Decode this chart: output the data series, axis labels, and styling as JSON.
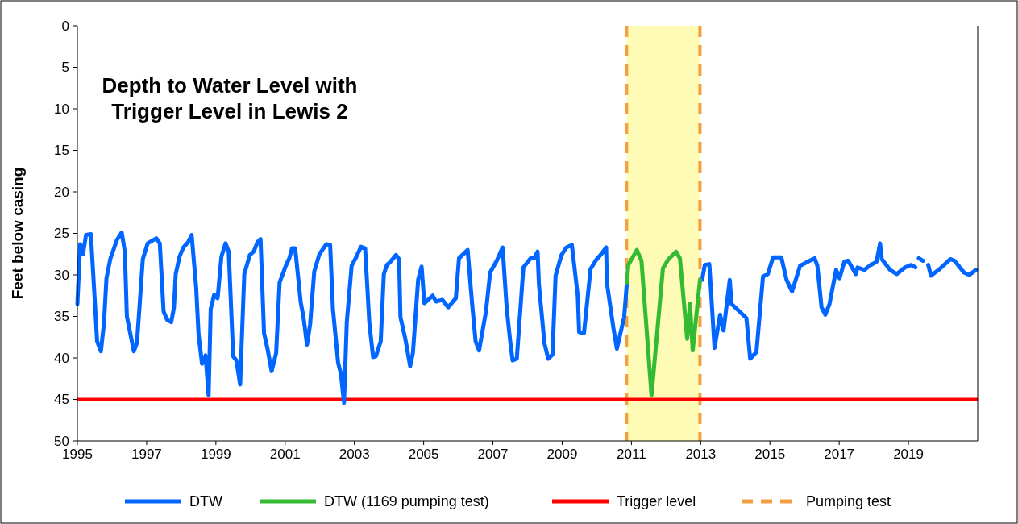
{
  "chart_data": {
    "type": "line",
    "title": "Depth to Water Level with Trigger Level in Lewis 2",
    "ylabel": "Feet below casing",
    "xlim": [
      1995,
      2021
    ],
    "xticks": [
      1995,
      1997,
      1999,
      2001,
      2003,
      2005,
      2007,
      2009,
      2011,
      2013,
      2015,
      2017,
      2019
    ],
    "ylim": [
      50,
      0
    ],
    "yticks": [
      0,
      5,
      10,
      15,
      20,
      25,
      30,
      35,
      40,
      45,
      50
    ],
    "grid": false,
    "legend": "bottom",
    "marker": "none",
    "line_style": "solid",
    "series": [
      {
        "name": "DTW",
        "color": "#0066ff",
        "x": [
          1995.0,
          1995.08,
          1995.16,
          1995.25,
          1995.39,
          1995.48,
          1995.57,
          1995.68,
          1995.77,
          1995.84,
          1995.95,
          1996.14,
          1996.28,
          1996.37,
          1996.43,
          1996.63,
          1996.72,
          1996.8,
          1996.89,
          1997.03,
          1997.28,
          1997.38,
          1997.49,
          1997.59,
          1997.71,
          1997.79,
          1997.84,
          1997.95,
          1998.06,
          1998.19,
          1998.3,
          1998.43,
          1998.5,
          1998.6,
          1998.7,
          1998.79,
          1998.85,
          1998.95,
          1999.05,
          1999.16,
          1999.28,
          1999.37,
          1999.5,
          1999.59,
          1999.7,
          1999.82,
          1999.98,
          2000.09,
          2000.21,
          2000.29,
          2000.39,
          2000.5,
          2000.61,
          2000.74,
          2000.84,
          2001.02,
          2001.12,
          2001.2,
          2001.29,
          2001.45,
          2001.53,
          2001.63,
          2001.72,
          2001.84,
          2001.99,
          2002.19,
          2002.3,
          2002.38,
          2002.53,
          2002.61,
          2002.7,
          2002.78,
          2002.92,
          2003.06,
          2003.19,
          2003.31,
          2003.43,
          2003.54,
          2003.62,
          2003.76,
          2003.85,
          2003.94,
          2004.02,
          2004.2,
          2004.29,
          2004.33,
          2004.47,
          2004.61,
          2004.69,
          2004.84,
          2004.94,
          2005.02,
          2005.13,
          2005.26,
          2005.36,
          2005.54,
          2005.71,
          2005.93,
          2006.02,
          2006.27,
          2006.4,
          2006.5,
          2006.6,
          2006.8,
          2006.92,
          2007.11,
          2007.28,
          2007.4,
          2007.5,
          2007.57,
          2007.69,
          2007.88,
          2008.09,
          2008.19,
          2008.29,
          2008.33,
          2008.49,
          2008.6,
          2008.72,
          2008.81,
          2008.98,
          2009.12,
          2009.28,
          2009.45,
          2009.49,
          2009.63,
          2009.82,
          2009.98,
          2010.13,
          2010.27,
          2010.29,
          2010.48,
          2010.58,
          2010.79,
          2010.87,
          2010.95,
          2013.0,
          2013.04,
          2013.12,
          2013.25,
          2013.4,
          2013.56,
          2013.66,
          2013.84,
          2013.89,
          2014.32,
          2014.43,
          2014.61,
          2014.8,
          2014.94,
          2015.09,
          2015.33,
          2015.48,
          2015.64,
          2015.87,
          2016.1,
          2016.29,
          2016.37,
          2016.49,
          2016.6,
          2016.72,
          2016.91,
          2017.01,
          2017.15,
          2017.26,
          2017.48,
          2017.53,
          2017.73,
          2017.88,
          2018.08,
          2018.18,
          2018.23,
          2018.47,
          2018.66,
          2018.9,
          2019.08,
          2019.2,
          2019.26,
          2019.3,
          2019.42,
          2019.48,
          2019.57,
          2019.65,
          2019.9,
          2020.21,
          2020.33,
          2020.6,
          2020.76,
          2020.95
        ],
        "values": [
          33.5,
          26.3,
          27.5,
          25.2,
          25.1,
          31.5,
          38,
          39.2,
          35.7,
          30.4,
          28.1,
          25.8,
          24.9,
          27.2,
          35,
          39.2,
          38.2,
          33.5,
          28.1,
          26.2,
          25.6,
          26.2,
          34.4,
          35.4,
          35.7,
          33.9,
          29.9,
          27.8,
          26.7,
          26.1,
          25.2,
          31.5,
          37.2,
          40.7,
          39.7,
          44.5,
          34.1,
          32.4,
          32.8,
          27.8,
          26.2,
          27.2,
          39.8,
          40.3,
          43.2,
          29.9,
          27.6,
          27.2,
          26,
          25.7,
          37,
          39.1,
          41.6,
          39.4,
          30.9,
          28.9,
          28,
          26.8,
          26.8,
          33.3,
          35.1,
          38.4,
          36,
          29.6,
          27.5,
          26.3,
          26.4,
          34.1,
          40.6,
          41.9,
          45.4,
          35.7,
          28.9,
          27.8,
          26.6,
          26.8,
          35.7,
          39.9,
          39.8,
          38,
          29.9,
          28.8,
          28.5,
          27.6,
          28.1,
          35.1,
          37.7,
          41,
          39.4,
          30.6,
          29,
          33.4,
          33,
          32.5,
          33.2,
          33,
          33.9,
          32.8,
          28,
          27,
          33.5,
          38,
          39.1,
          34.4,
          29.7,
          28.3,
          26.7,
          34.1,
          38,
          40.3,
          40.1,
          29.1,
          28,
          28,
          27.2,
          31.2,
          38.3,
          40.1,
          39.6,
          30.1,
          27.6,
          26.7,
          26.4,
          32.5,
          36.9,
          37,
          29.3,
          28.2,
          27.5,
          26.7,
          30.9,
          36.4,
          38.9,
          35.1,
          30.9,
          null,
          null,
          30.6,
          28.8,
          28.7,
          38.8,
          34.8,
          36.7,
          30.6,
          33.5,
          35.2,
          40.1,
          39.3,
          30.2,
          29.9,
          27.9,
          27.9,
          30.6,
          32,
          28.9,
          28.4,
          28,
          28.9,
          33.9,
          34.8,
          33.5,
          29.4,
          30.4,
          28.4,
          28.3,
          29.9,
          29.1,
          29.4,
          28.9,
          28.4,
          26.2,
          28.1,
          29.4,
          29.9,
          29.1,
          28.8,
          29.1,
          null,
          28.0,
          28.3,
          null,
          28.8,
          30.1,
          29.3,
          28.1,
          28.3,
          29.7,
          30,
          29.4
        ]
      },
      {
        "name": "DTW (1169 pumping test)",
        "color": "#33bb33",
        "x": [
          2010.87,
          2010.91,
          2011.16,
          2011.29,
          2011.58,
          2011.91,
          2012.07,
          2012.29,
          2012.4,
          2012.61,
          2012.69,
          2012.77,
          2012.98
        ],
        "values": [
          30.9,
          28.8,
          27,
          28.3,
          44.5,
          29.2,
          28.1,
          27.2,
          28,
          37.7,
          33.5,
          39.1,
          30.6
        ]
      }
    ],
    "ref_lines": [
      {
        "axis": "y",
        "value": 45,
        "label": "Trigger level",
        "color": "#ff0000",
        "line_style": "solid"
      },
      {
        "axis": "x",
        "value": 2010.86,
        "label": "Pumping test",
        "color": "#f5a040",
        "line_style": "dashed"
      },
      {
        "axis": "x",
        "value": 2012.98,
        "color": "#f5a040",
        "line_style": "dashed"
      }
    ],
    "bands": [
      {
        "axis": "x",
        "from": 2010.86,
        "to": 2012.98,
        "color": "#fdfbb5"
      }
    ]
  }
}
